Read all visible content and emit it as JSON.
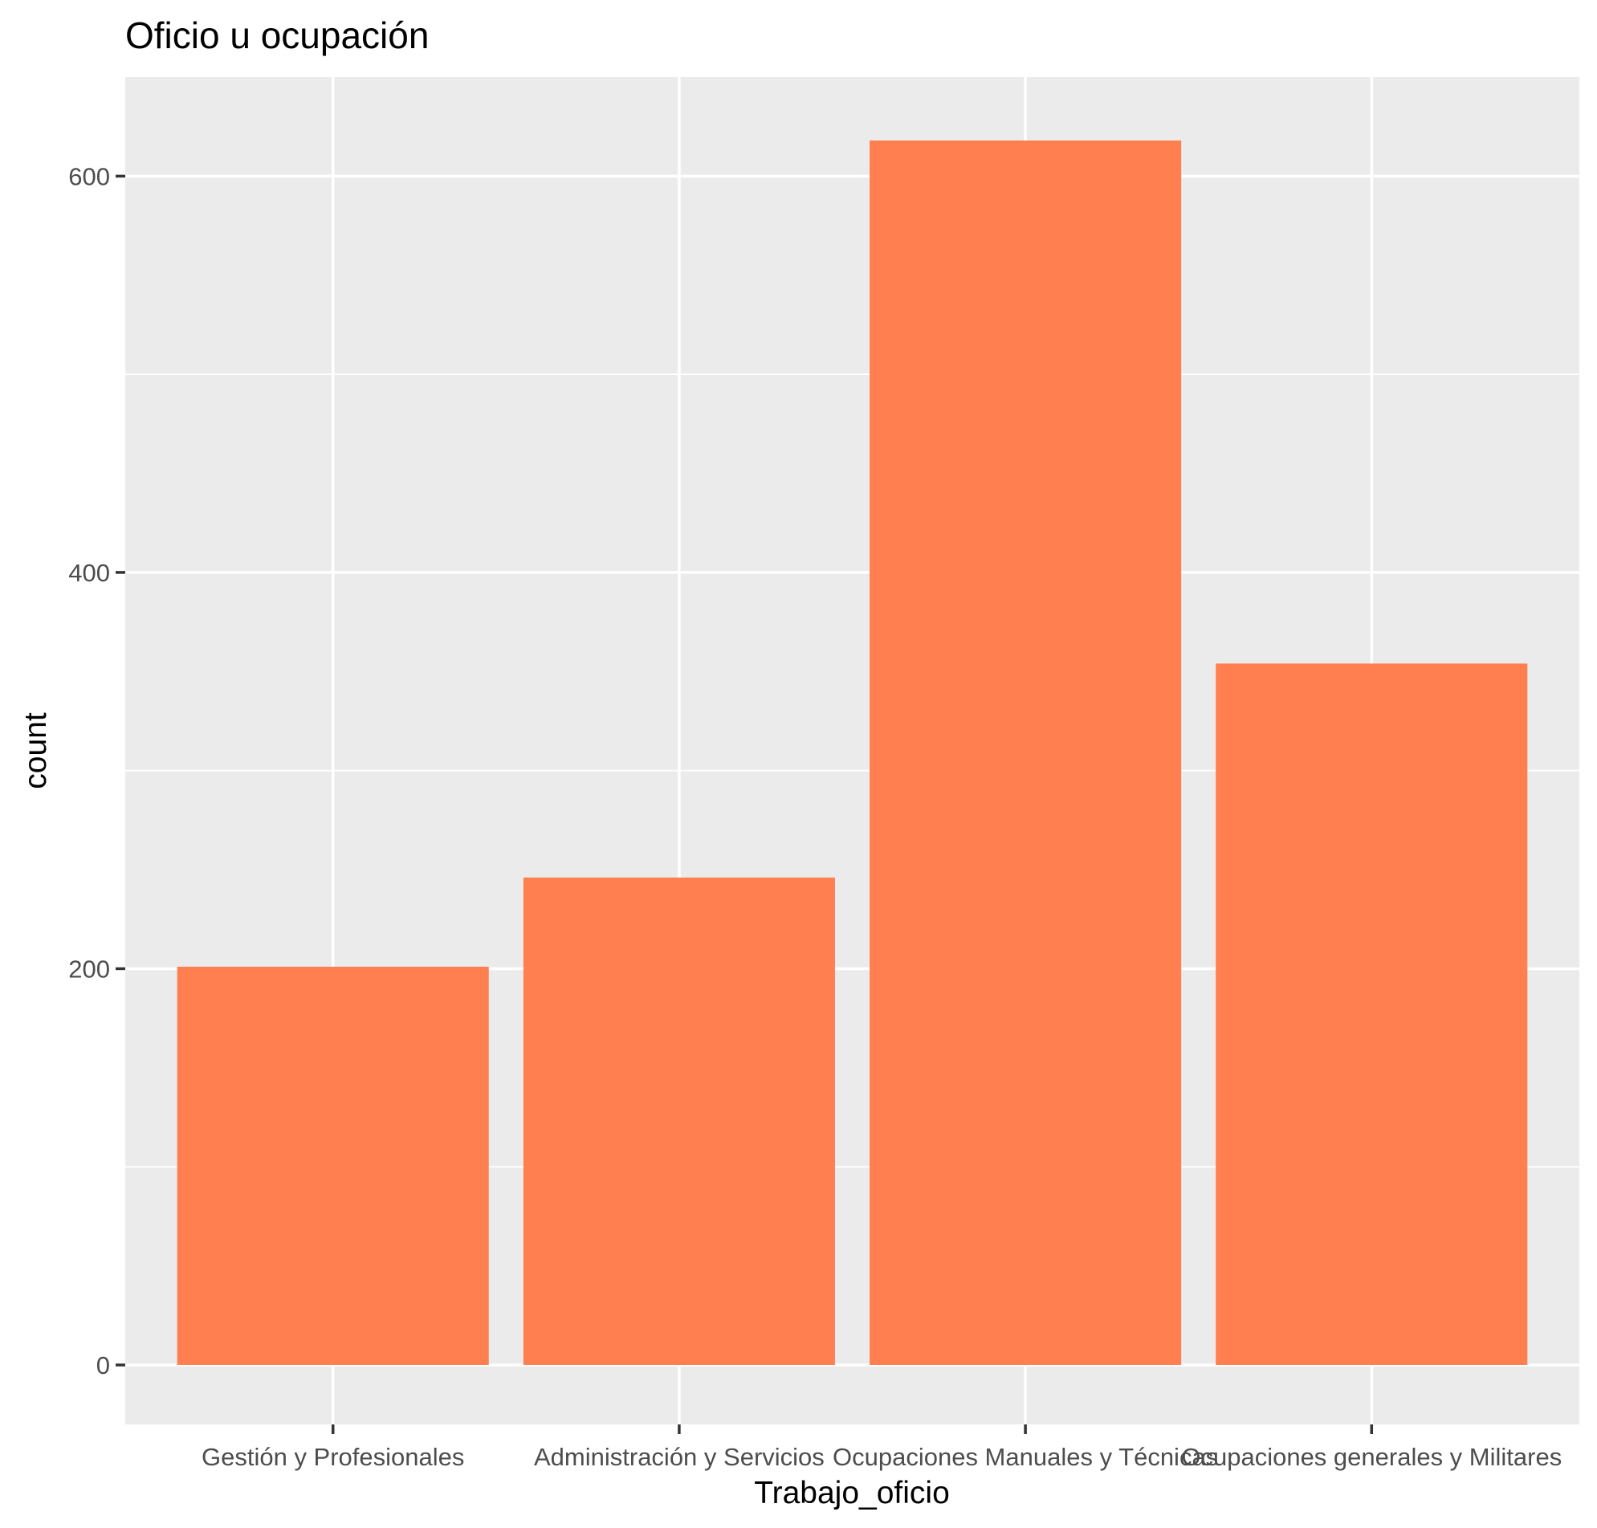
{
  "chart_data": {
    "type": "bar",
    "title": "Oficio u ocupación",
    "xlabel": "Trabajo_oficio",
    "ylabel": "count",
    "categories": [
      "Gestión y Profesionales",
      "Administración y Servicios",
      "Ocupaciones Manuales y Técnicas",
      "Ocupaciones generales y Militares"
    ],
    "values": [
      201,
      246,
      618,
      354
    ],
    "ylim": [
      -30,
      650
    ],
    "yticks": [
      0,
      200,
      400,
      600
    ],
    "grid": true,
    "colors": {
      "bar": "#FF7F50",
      "panel": "#EBEBEB",
      "grid": "#FFFFFF"
    }
  }
}
